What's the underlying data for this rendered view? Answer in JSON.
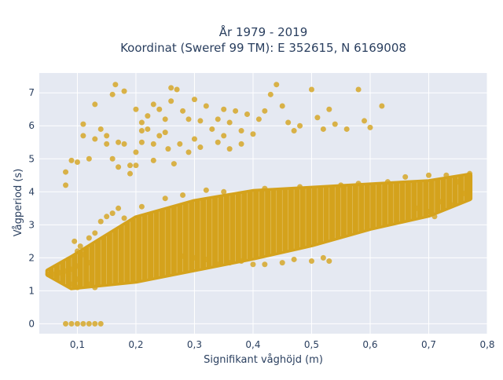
{
  "chart_data": {
    "type": "scatter",
    "title_line1": "År 1979 - 2019",
    "title_line2": "Koordinat (Sweref 99 TM): E 352615, N 6169008",
    "xlabel": "Signifikant våghöjd (m)",
    "ylabel": "Vågperiod (s)",
    "xlim": [
      0.035,
      0.8
    ],
    "ylim": [
      -0.3,
      7.6
    ],
    "x_ticks": [
      0.1,
      0.2,
      0.3,
      0.4,
      0.5,
      0.6,
      0.7,
      0.8
    ],
    "x_tick_labels": [
      "0,1",
      "0,2",
      "0,3",
      "0,4",
      "0,5",
      "0,6",
      "0,7",
      "0,8"
    ],
    "y_ticks": [
      0,
      1,
      2,
      3,
      4,
      5,
      6,
      7
    ],
    "y_tick_labels": [
      "0",
      "1",
      "2",
      "3",
      "4",
      "5",
      "6",
      "7"
    ],
    "grid": true,
    "legend": "none",
    "marker_color": "#d4a21c",
    "plot_bg": "#e5e9f2",
    "main_band": {
      "x_range": [
        0.05,
        0.77
      ],
      "lower_edge": [
        [
          0.05,
          1.5
        ],
        [
          0.09,
          1.1
        ],
        [
          0.2,
          1.3
        ],
        [
          0.3,
          1.65
        ],
        [
          0.4,
          2.0
        ],
        [
          0.5,
          2.4
        ],
        [
          0.6,
          2.9
        ],
        [
          0.7,
          3.3
        ],
        [
          0.77,
          3.8
        ]
      ],
      "upper_edge": [
        [
          0.05,
          1.6
        ],
        [
          0.09,
          2.0
        ],
        [
          0.2,
          3.2
        ],
        [
          0.3,
          3.7
        ],
        [
          0.4,
          4.0
        ],
        [
          0.5,
          4.1
        ],
        [
          0.6,
          4.2
        ],
        [
          0.7,
          4.3
        ],
        [
          0.77,
          4.5
        ]
      ]
    },
    "points": [
      [
        0.05,
        1.5
      ],
      [
        0.055,
        1.55
      ],
      [
        0.06,
        1.5
      ],
      [
        0.065,
        1.6
      ],
      [
        0.07,
        1.55
      ],
      [
        0.075,
        1.45
      ],
      [
        0.08,
        1.6
      ],
      [
        0.085,
        1.5
      ],
      [
        0.08,
        0.0
      ],
      [
        0.09,
        0.0
      ],
      [
        0.1,
        0.0
      ],
      [
        0.11,
        0.0
      ],
      [
        0.12,
        0.0
      ],
      [
        0.13,
        0.0
      ],
      [
        0.14,
        0.0
      ],
      [
        0.08,
        4.2
      ],
      [
        0.08,
        4.6
      ],
      [
        0.09,
        4.95
      ],
      [
        0.1,
        4.9
      ],
      [
        0.11,
        5.7
      ],
      [
        0.12,
        5.0
      ],
      [
        0.13,
        6.65
      ],
      [
        0.11,
        6.05
      ],
      [
        0.13,
        5.6
      ],
      [
        0.14,
        5.9
      ],
      [
        0.15,
        5.45
      ],
      [
        0.16,
        5.0
      ],
      [
        0.17,
        4.75
      ],
      [
        0.18,
        5.45
      ],
      [
        0.19,
        4.8
      ],
      [
        0.15,
        5.7
      ],
      [
        0.16,
        6.95
      ],
      [
        0.165,
        7.25
      ],
      [
        0.18,
        7.05
      ],
      [
        0.17,
        5.5
      ],
      [
        0.2,
        5.2
      ],
      [
        0.19,
        4.55
      ],
      [
        0.2,
        4.8
      ],
      [
        0.21,
        5.5
      ],
      [
        0.22,
        6.3
      ],
      [
        0.23,
        6.65
      ],
      [
        0.24,
        6.5
      ],
      [
        0.25,
        6.2
      ],
      [
        0.24,
        5.7
      ],
      [
        0.23,
        5.45
      ],
      [
        0.22,
        5.9
      ],
      [
        0.21,
        6.1
      ],
      [
        0.25,
        5.8
      ],
      [
        0.26,
        7.15
      ],
      [
        0.27,
        7.1
      ],
      [
        0.28,
        6.45
      ],
      [
        0.29,
        6.2
      ],
      [
        0.3,
        5.6
      ],
      [
        0.31,
        6.15
      ],
      [
        0.32,
        6.6
      ],
      [
        0.33,
        5.9
      ],
      [
        0.34,
        6.2
      ],
      [
        0.35,
        5.7
      ],
      [
        0.36,
        6.1
      ],
      [
        0.37,
        6.45
      ],
      [
        0.38,
        5.85
      ],
      [
        0.39,
        6.35
      ],
      [
        0.4,
        5.75
      ],
      [
        0.41,
        6.2
      ],
      [
        0.42,
        6.45
      ],
      [
        0.43,
        6.95
      ],
      [
        0.44,
        7.25
      ],
      [
        0.45,
        6.6
      ],
      [
        0.46,
        6.1
      ],
      [
        0.47,
        5.85
      ],
      [
        0.48,
        6.0
      ],
      [
        0.5,
        7.1
      ],
      [
        0.51,
        6.25
      ],
      [
        0.52,
        5.9
      ],
      [
        0.53,
        6.5
      ],
      [
        0.54,
        6.05
      ],
      [
        0.56,
        5.9
      ],
      [
        0.58,
        7.1
      ],
      [
        0.59,
        6.15
      ],
      [
        0.6,
        5.95
      ],
      [
        0.62,
        6.6
      ],
      [
        0.255,
        5.3
      ],
      [
        0.275,
        5.45
      ],
      [
        0.26,
        6.75
      ],
      [
        0.3,
        6.8
      ],
      [
        0.35,
        6.5
      ],
      [
        0.2,
        6.5
      ],
      [
        0.21,
        5.85
      ],
      [
        0.265,
        4.85
      ],
      [
        0.23,
        4.95
      ],
      [
        0.29,
        5.2
      ],
      [
        0.31,
        5.35
      ],
      [
        0.34,
        5.5
      ],
      [
        0.36,
        5.3
      ],
      [
        0.38,
        5.45
      ],
      [
        0.28,
        2.05
      ],
      [
        0.3,
        2.0
      ],
      [
        0.32,
        1.95
      ],
      [
        0.34,
        1.8
      ],
      [
        0.36,
        1.85
      ],
      [
        0.38,
        1.9
      ],
      [
        0.4,
        1.8
      ],
      [
        0.42,
        1.8
      ],
      [
        0.45,
        1.85
      ],
      [
        0.47,
        1.95
      ],
      [
        0.5,
        1.9
      ],
      [
        0.52,
        2.0
      ],
      [
        0.53,
        1.9
      ],
      [
        0.66,
        4.45
      ],
      [
        0.7,
        4.5
      ],
      [
        0.73,
        4.5
      ],
      [
        0.75,
        4.3
      ],
      [
        0.77,
        4.55
      ],
      [
        0.74,
        3.6
      ],
      [
        0.76,
        3.95
      ],
      [
        0.72,
        3.7
      ],
      [
        0.68,
        3.5
      ],
      [
        0.7,
        3.4
      ],
      [
        0.71,
        3.25
      ],
      [
        0.12,
        2.6
      ],
      [
        0.13,
        2.75
      ],
      [
        0.14,
        3.1
      ],
      [
        0.15,
        3.25
      ],
      [
        0.16,
        3.35
      ],
      [
        0.17,
        3.5
      ],
      [
        0.1,
        2.2
      ],
      [
        0.18,
        3.2
      ],
      [
        0.21,
        3.55
      ],
      [
        0.25,
        3.8
      ],
      [
        0.28,
        3.9
      ],
      [
        0.32,
        4.05
      ],
      [
        0.35,
        4.0
      ],
      [
        0.42,
        4.1
      ],
      [
        0.48,
        4.15
      ],
      [
        0.55,
        4.2
      ],
      [
        0.58,
        4.25
      ],
      [
        0.63,
        4.3
      ],
      [
        0.1,
        1.1
      ],
      [
        0.12,
        1.2
      ],
      [
        0.095,
        2.5
      ],
      [
        0.09,
        1.65
      ],
      [
        0.1,
        1.75
      ],
      [
        0.105,
        2.35
      ],
      [
        0.11,
        2.1
      ],
      [
        0.1,
        1.35
      ],
      [
        0.09,
        1.2
      ],
      [
        0.12,
        1.85
      ],
      [
        0.13,
        1.1
      ]
    ]
  }
}
